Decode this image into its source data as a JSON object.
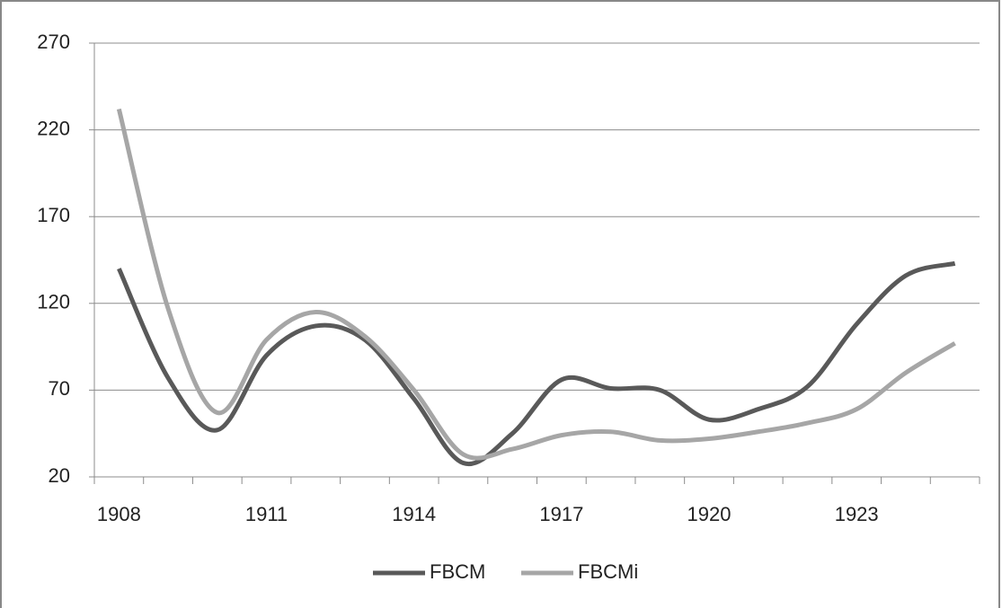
{
  "chart_data": {
    "type": "line",
    "categories": [
      "1908",
      null,
      null,
      "1911",
      null,
      null,
      "1914",
      null,
      null,
      "1917",
      null,
      null,
      "1920",
      null,
      null,
      "1923",
      null,
      null
    ],
    "series": [
      {
        "name": "FBCM",
        "color": "#595959",
        "values": [
          140,
          77,
          47,
          90,
          107,
          99,
          65,
          28,
          45,
          76,
          71,
          70,
          53,
          59,
          72,
          108,
          136,
          143
        ]
      },
      {
        "name": "FBCMi",
        "color": "#a6a6a6",
        "values": [
          232,
          117,
          57,
          99,
          115,
          101,
          70,
          33,
          36,
          44,
          46,
          41,
          42,
          46,
          51,
          59,
          80,
          97
        ]
      }
    ],
    "ylim": [
      20,
      270
    ],
    "yticks": [
      20,
      70,
      120,
      170,
      220,
      270
    ],
    "grid": true,
    "legend": "bottom"
  }
}
